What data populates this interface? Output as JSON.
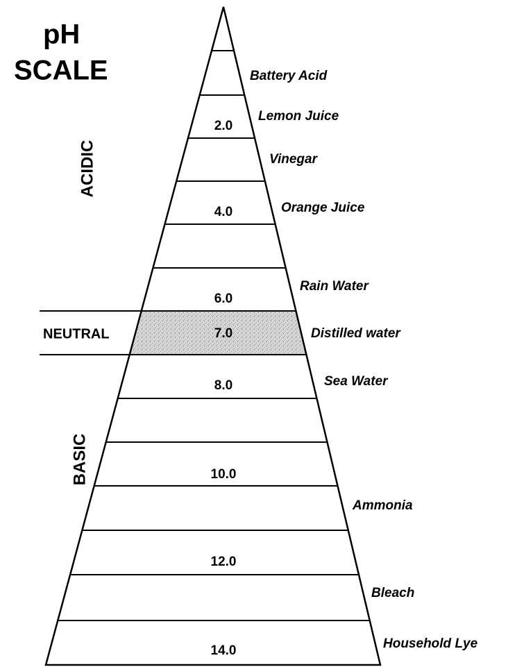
{
  "title": [
    "pH",
    "SCALE"
  ],
  "regions": {
    "acidic": "ACIDIC",
    "neutral": "NEUTRAL",
    "basic": "BASIC"
  },
  "levels": [
    "2.0",
    "4.0",
    "6.0",
    "7.0",
    "8.0",
    "10.0",
    "12.0",
    "14.0"
  ],
  "substances": [
    "Battery Acid",
    "Lemon Juice",
    "Vinegar",
    "Orange Juice",
    "Rain Water",
    "Distilled water",
    "Sea Water",
    "Ammonia",
    "Bleach",
    "Household Lye"
  ]
}
